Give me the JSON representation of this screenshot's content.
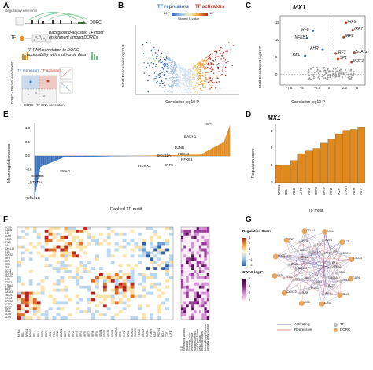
{
  "panels": {
    "a": "A",
    "b": "B",
    "c": "C",
    "d": "D",
    "e": "E",
    "f": "F",
    "g": "G"
  },
  "panel_a": {
    "regulatory_elements": "Regulatory elements",
    "dorc": "DORC",
    "tf": "TF",
    "background_text": "Background-adjusted TF motif enrichment among DORCs",
    "correlation_text": "TF RNA correlation to DORC accessibility with multi-omic data",
    "tf_repressors": "TF repressors",
    "tf_activators": "TF activators",
    "y_axis": "DORC - TF motif enrichment",
    "x_axis": "DORC - TF RNA correlation"
  },
  "panel_b": {
    "legend_repressors": "TF repressors",
    "legend_activators": "TF activators",
    "colorbar_min": "10⁻⁵",
    "colorbar_max": "10⁵",
    "colorbar_label": "Signed P-value",
    "xlabel": "Correlation log10 P",
    "ylabel": "Motif Enrichment log10 P"
  },
  "panel_c": {
    "title": "MX1",
    "xlabel": "Correlation log10 P",
    "ylabel": "Motif Enrichment log10 P",
    "xticks": [
      "−7.5",
      "−5",
      "−2.5",
      "0",
      "2.5",
      "5"
    ],
    "yticks": [
      "0",
      "5",
      "10",
      "15"
    ],
    "labels": [
      "IRF9",
      "IRF7",
      "NFKB1",
      "IRF8",
      "IRF2",
      "AHR",
      "IRF3",
      "STAT2",
      "REL",
      "SP1",
      "IKZF1"
    ]
  },
  "panel_d": {
    "title": "MX1",
    "ylabel": "Regulation score",
    "xlabel": "TF motif",
    "yticks": [
      "0",
      "1",
      "2",
      "3"
    ],
    "chart_data": {
      "type": "bar",
      "categories": [
        "NFKB1",
        "REL",
        "IRF8",
        "AHR",
        "IRF3",
        "USF2",
        "BPTF",
        "IRF2",
        "IKZF1",
        "STAT2",
        "IRF9",
        "IRF7"
      ],
      "values": [
        1.0,
        1.05,
        1.3,
        1.7,
        1.85,
        2.0,
        2.3,
        2.55,
        2.85,
        3.05,
        3.1,
        3.25
      ],
      "ylim": [
        0,
        3.4
      ],
      "color": "#e08a1e"
    }
  },
  "panel_e": {
    "ylabel": "Mean regulation score",
    "xlabel": "Ranked TF motif",
    "yticks": [
      "1.0",
      "0.5",
      "0.0",
      "−0.5",
      "−1.0",
      "−1.5"
    ],
    "labels": [
      "SP1",
      "BACH1",
      "JUNB",
      "BCL11A",
      "FOSL1",
      "NFKB1",
      "RUNX3",
      "IRF5",
      "SNAI1",
      "SMAD4",
      "STAT5A",
      "BCL11B"
    ]
  },
  "panel_f": {
    "rows_left": [
      "CCR6",
      "IL2RA",
      "IL10",
      "CD69",
      "IL12B",
      "IFNG",
      "IL6",
      "CXCL10",
      "IL1B",
      "SOCS1",
      "IRF1",
      "IRF4",
      "IRF8",
      "TNF",
      "CCL3",
      "CD274",
      "ICAM1",
      "IL7R",
      "STAT1",
      "CTLA4",
      "BATF",
      "GATA3",
      "TBX21",
      "RORC",
      "FOXP3",
      "IKZF2",
      "CCR7",
      "SELL",
      "CD28",
      "CD40"
    ],
    "cols_bottom": [
      "MYNN",
      "REL",
      "NFKB1",
      "NFKB2",
      "RELA",
      "RELB",
      "EGR1",
      "EGR2",
      "JUN",
      "FOS",
      "JUNB",
      "BACH1",
      "BATF",
      "IRF1",
      "IRF2",
      "IRF3",
      "IRF4",
      "IRF5",
      "IRF7",
      "IRF8",
      "IRF9",
      "STAT1",
      "STAT2",
      "STAT3",
      "STAT4",
      "STAT5A",
      "ETS1",
      "ELF1",
      "SPI1",
      "RUNX1",
      "RUNX3",
      "TBX21",
      "GATA3",
      "RORC",
      "FOXP3",
      "MAF",
      "PRDM1",
      "BCL6",
      "TCF7",
      "LEF1"
    ],
    "gwas_cols": [
      "SLE",
      "Rheumatoid Arthritis",
      "Psoriasis",
      "Ulcerative Colitis",
      "Crohn's Disease",
      "Multiple Sclerosis",
      "Adult Onset Asthma",
      "Celiac Disease",
      "Childhood Asthma",
      "Primary Biliary Cirrhosis",
      "Coronary Artery Disease"
    ],
    "legend_score_title": "Regulation Score",
    "legend_score_ticks": [
      "3",
      "2",
      "1",
      "0",
      "−1",
      "−2"
    ],
    "legend_gwas_title": "GWAS log P",
    "legend_gwas_ticks": [
      "6",
      "4",
      "2",
      "0"
    ]
  },
  "panel_g": {
    "nodes_tf": [
      "NFKB2",
      "SPI1",
      "RELB",
      "STAT5A",
      "BATF",
      "IRF1",
      "IRF4",
      "EGR1",
      "JUNB",
      "NFKB1",
      "REL",
      "FOSL1",
      "RUNX3",
      "STAT1",
      "MAF",
      "ETS1",
      "BACH1",
      "IRF8",
      "ELF1",
      "TCF7",
      "IKZF1",
      "IRF2",
      "IRF5",
      "CREM",
      "SP1"
    ],
    "nodes_dorc": [
      "CCR6",
      "CD69",
      "IL2RA",
      "ICOS",
      "CXCL10",
      "IL1B",
      "SOCS1",
      "TNF",
      "CTLA4",
      "BCL6",
      "IL7R",
      "CD274"
    ],
    "legend_activating": "Activating",
    "legend_repressive": "Repressive",
    "legend_tf": "TF",
    "legend_dorc": "DORC"
  },
  "colors": {
    "activator": "#c0392b",
    "repressor": "#3b6fb6",
    "bar": "#e08a1e",
    "gwas": "#7a1f7a",
    "dorc_node": "#e8a45e",
    "tf_node": "#b8b8b8"
  }
}
